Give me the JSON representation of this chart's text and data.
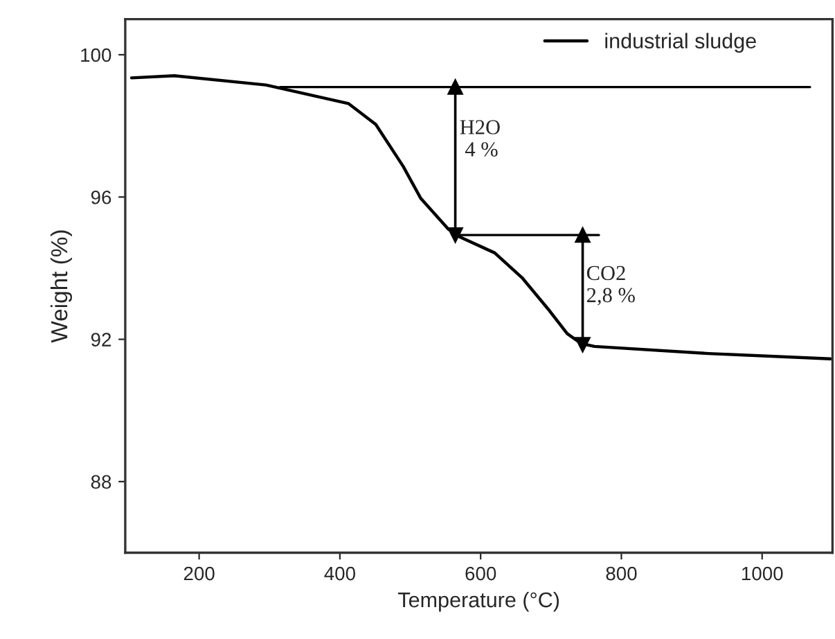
{
  "chart_data": {
    "type": "line",
    "xlabel": "Temperature (°C)",
    "ylabel": "Weight (%)",
    "xlim": [
      95,
      1100
    ],
    "xticks": [
      200,
      400,
      600,
      800,
      1000
    ],
    "ylim": [
      86,
      101
    ],
    "yticks": [
      88,
      92,
      96,
      100
    ],
    "grid": false,
    "legend": "top right",
    "series": [
      {
        "name": "industrial sludge",
        "color": "#000000",
        "x": [
          104,
          165,
          295,
          412,
          451,
          490,
          515,
          554,
          568,
          620,
          659,
          698,
          723,
          743,
          762,
          924,
          1097
        ],
        "values": [
          99.35,
          99.41,
          99.15,
          98.63,
          98.04,
          96.86,
          95.96,
          95.1,
          94.9,
          94.43,
          93.73,
          92.8,
          92.16,
          91.88,
          91.8,
          91.6,
          91.45
        ]
      },
      {
        "color": "#000000",
        "x": [
          315,
          1068
        ],
        "values": [
          99.09,
          99.09
        ]
      },
      {
        "color": "#000000",
        "x": [
          568,
          768
        ],
        "values": [
          94.93,
          94.93
        ]
      },
      {
        "color": "#000000",
        "marker": "triangle",
        "x": [
          564,
          564
        ],
        "values": [
          99.09,
          94.93
        ]
      },
      {
        "color": "#000000",
        "marker": "triangle",
        "x": [
          745,
          745
        ],
        "values": [
          94.93,
          91.85
        ]
      }
    ],
    "annotations": [
      {
        "text": "H2O\n 4 %",
        "x": 570,
        "y": 97.6
      },
      {
        "text": "CO2\n2,8 %",
        "x": 750,
        "y": 93.5
      }
    ]
  }
}
